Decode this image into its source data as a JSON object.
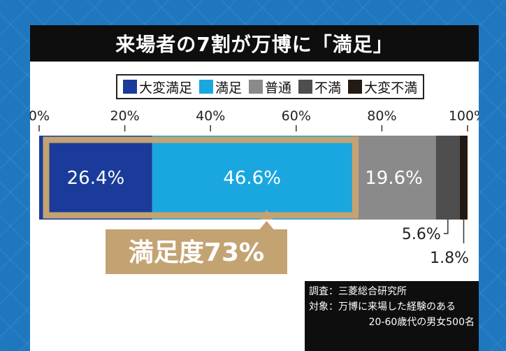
{
  "title": "来場者の7割が万博に「満足」",
  "colors": {
    "very_satisfied": "#1a3b9a",
    "satisfied": "#1aa7e0",
    "neutral": "#8a8a8a",
    "dissatisfied": "#4e4e4e",
    "very_dissatisfied": "#241a14",
    "highlight": "#c4a373"
  },
  "legend": [
    {
      "label": "大変満足",
      "color": "#1a3b9a"
    },
    {
      "label": "満足",
      "color": "#1aa7e0"
    },
    {
      "label": "普通",
      "color": "#8a8a8a"
    },
    {
      "label": "不満",
      "color": "#4e4e4e"
    },
    {
      "label": "大変不満",
      "color": "#241a14"
    }
  ],
  "chart_data": {
    "type": "bar",
    "orientation": "horizontal-stacked",
    "title": "来場者の7割が万博に「満足」",
    "x_ticks": [
      "0%",
      "20%",
      "40%",
      "60%",
      "80%",
      "100%"
    ],
    "xlim": [
      0,
      100
    ],
    "series": [
      {
        "name": "大変満足",
        "value": 26.4,
        "label": "26.4%",
        "color": "#1a3b9a"
      },
      {
        "name": "満足",
        "value": 46.6,
        "label": "46.6%",
        "color": "#1aa7e0"
      },
      {
        "name": "普通",
        "value": 19.6,
        "label": "19.6%",
        "color": "#8a8a8a"
      },
      {
        "name": "不満",
        "value": 5.6,
        "label": "5.6%",
        "color": "#4e4e4e"
      },
      {
        "name": "大変不満",
        "value": 1.8,
        "label": "1.8%",
        "color": "#241a14"
      }
    ],
    "highlight": {
      "text": "満足度73%",
      "value": 73
    }
  },
  "source": {
    "survey": "調査：三菱総合研究所",
    "target_line1": "対象：万博に来場した経験のある",
    "target_line2": "20-60歳代の男女500名"
  }
}
